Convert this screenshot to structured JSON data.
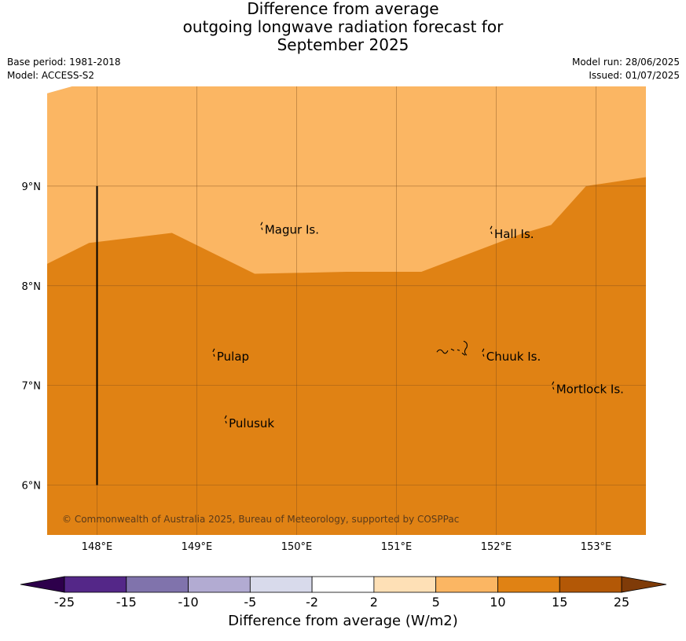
{
  "title": {
    "line1": "Difference from average",
    "line2": "outgoing longwave radiation forecast for",
    "line3": "September 2025"
  },
  "meta": {
    "base_period": "Base period: 1981-2018",
    "model": "Model: ACCESS-S2",
    "model_run": "Model run: 28/06/2025",
    "issued": "Issued: 01/07/2025"
  },
  "map": {
    "lon_range": [
      147.5,
      153.5
    ],
    "lat_range": [
      5.5,
      10.0
    ],
    "lon_ticks": [
      {
        "value": 148,
        "label": "148°E"
      },
      {
        "value": 149,
        "label": "149°E"
      },
      {
        "value": 150,
        "label": "150°E"
      },
      {
        "value": 151,
        "label": "151°E"
      },
      {
        "value": 152,
        "label": "152°E"
      },
      {
        "value": 153,
        "label": "153°E"
      }
    ],
    "lat_ticks": [
      {
        "value": 9,
        "label": "9°N"
      },
      {
        "value": 8,
        "label": "8°N"
      },
      {
        "value": 7,
        "label": "7°N"
      },
      {
        "value": 6,
        "label": "6°N"
      }
    ],
    "region_colors": {
      "upper": "#fbb663",
      "lower": "#e08214"
    },
    "boundary": [
      [
        147.5,
        9.93
      ],
      [
        147.75,
        10.0
      ]
    ],
    "contour_5_10": [
      [
        147.5,
        8.22
      ],
      [
        147.92,
        8.43
      ],
      [
        148.75,
        8.53
      ],
      [
        149.58,
        8.12
      ],
      [
        150.5,
        8.14
      ],
      [
        151.25,
        8.14
      ],
      [
        152.25,
        8.52
      ],
      [
        152.55,
        8.61
      ],
      [
        152.9,
        9.0
      ],
      [
        153.5,
        9.09
      ]
    ],
    "vertical_line": {
      "lon": 148.0,
      "lat_from": 6.0,
      "lat_to": 9.0
    },
    "places": [
      {
        "name": "Magur Is.",
        "lon": 149.68,
        "lat": 8.56
      },
      {
        "name": "Hall Is.",
        "lon": 151.98,
        "lat": 8.52
      },
      {
        "name": "Pulap",
        "lon": 149.2,
        "lat": 7.29
      },
      {
        "name": "Chuuk Is.",
        "lon": 151.9,
        "lat": 7.29
      },
      {
        "name": "Mortlock Is.",
        "lon": 152.6,
        "lat": 6.96
      },
      {
        "name": "Pulusuk",
        "lon": 149.32,
        "lat": 6.62
      }
    ],
    "copyright": "© Commonwealth of Australia 2025, Bureau of Meteorology, supported by COSPPac"
  },
  "colorbar": {
    "title": "Difference from average (W/m2)",
    "levels": [
      "-25",
      "-15",
      "-10",
      "-5",
      "-2",
      "2",
      "5",
      "10",
      "15",
      "25"
    ],
    "colors": [
      "#542788",
      "#8073ac",
      "#b2abd2",
      "#d8daeb",
      "#ffffff",
      "#fee0b6",
      "#fbb663",
      "#e08214",
      "#b35806"
    ],
    "under_color": "#2d004b",
    "over_color": "#7f3b08"
  }
}
